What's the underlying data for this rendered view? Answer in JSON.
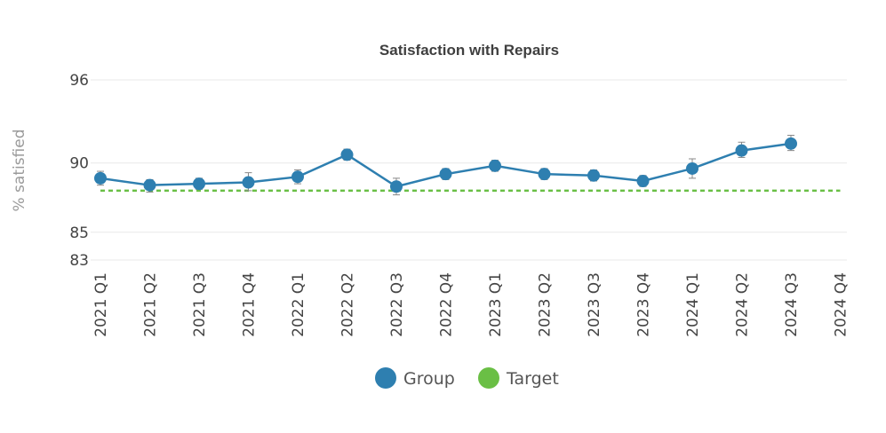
{
  "chart_data": {
    "type": "line",
    "title": "Satisfaction with Repairs",
    "xlabel": "",
    "ylabel": "% satisfied",
    "categories": [
      "2021 Q1",
      "2021 Q2",
      "2021 Q3",
      "2021 Q4",
      "2022 Q1",
      "2022 Q2",
      "2022 Q3",
      "2022 Q4",
      "2023 Q1",
      "2023 Q2",
      "2023 Q3",
      "2023 Q4",
      "2024 Q1",
      "2024 Q2",
      "2024 Q3",
      "2024 Q4"
    ],
    "yticks": [
      96,
      90,
      85,
      83
    ],
    "ylim": [
      83,
      96
    ],
    "grid": true,
    "legend_position": "bottom",
    "series": [
      {
        "name": "Group",
        "color": "#2e7fb0",
        "style": "line-with-markers",
        "values": [
          88.9,
          88.4,
          88.5,
          88.6,
          89.0,
          90.6,
          88.3,
          89.2,
          89.8,
          89.2,
          89.1,
          88.7,
          89.6,
          90.9,
          91.4,
          null
        ],
        "error_low": [
          88.4,
          87.9,
          88.1,
          88.0,
          88.5,
          90.2,
          87.7,
          88.8,
          89.4,
          88.8,
          88.7,
          88.3,
          88.9,
          90.4,
          90.9,
          null
        ],
        "error_high": [
          89.4,
          88.8,
          88.9,
          89.3,
          89.5,
          91.0,
          88.9,
          89.6,
          90.2,
          89.6,
          89.5,
          89.1,
          90.3,
          91.5,
          92.0,
          null
        ]
      },
      {
        "name": "Target",
        "color": "#6abf45",
        "style": "dashed",
        "values": [
          88.0,
          88.0,
          88.0,
          88.0,
          88.0,
          88.0,
          88.0,
          88.0,
          88.0,
          88.0,
          88.0,
          88.0,
          88.0,
          88.0,
          88.0,
          88.0
        ]
      }
    ]
  }
}
